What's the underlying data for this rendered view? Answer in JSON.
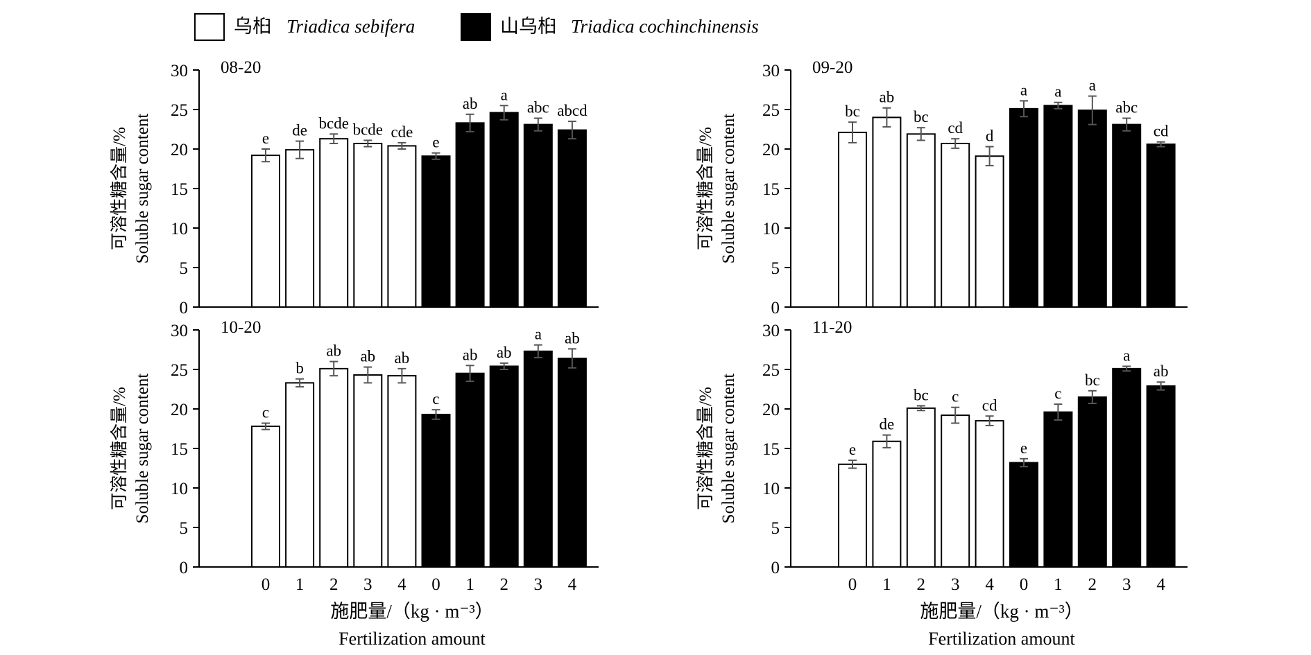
{
  "legend": [
    {
      "label_cn": "乌桕",
      "label_latin": "Triadica sebifera",
      "fill": "#ffffff"
    },
    {
      "label_cn": "山乌桕",
      "label_latin": "Triadica cochinchinensis",
      "fill": "#000000"
    }
  ],
  "y_axis_label_cn": "可溶性糖含量/%",
  "y_axis_label_en": "Soluble sugar content",
  "x_axis_label_cn": "施肥量/（kg · m⁻³）",
  "x_axis_label_en": "Fertilization amount",
  "colors": {
    "sebifera": "#ffffff",
    "cochinchinensis": "#000000",
    "error_bar": "#555555",
    "stroke": "#000000"
  },
  "chart_data": [
    {
      "type": "bar",
      "title": "08-20",
      "categories": [
        "0",
        "1",
        "2",
        "3",
        "4",
        "0",
        "1",
        "2",
        "3",
        "4"
      ],
      "values": [
        19.2,
        19.9,
        21.3,
        20.7,
        20.4,
        19.1,
        23.3,
        24.6,
        23.1,
        22.4
      ],
      "errors": [
        0.8,
        1.1,
        0.6,
        0.4,
        0.4,
        0.4,
        1.1,
        0.9,
        0.8,
        1.1
      ],
      "letters": [
        "e",
        "de",
        "bcde",
        "bcde",
        "cde",
        "e",
        "ab",
        "a",
        "abc",
        "abcd"
      ],
      "species": [
        "sebifera",
        "sebifera",
        "sebifera",
        "sebifera",
        "sebifera",
        "cochinchinensis",
        "cochinchinensis",
        "cochinchinensis",
        "cochinchinensis",
        "cochinchinensis"
      ],
      "ylim": [
        0,
        30
      ],
      "yticks": [
        0,
        5,
        10,
        15,
        20,
        25,
        30
      ]
    },
    {
      "type": "bar",
      "title": "09-20",
      "categories": [
        "0",
        "1",
        "2",
        "3",
        "4",
        "0",
        "1",
        "2",
        "3",
        "4"
      ],
      "values": [
        22.1,
        24.0,
        21.9,
        20.7,
        19.1,
        25.1,
        25.5,
        24.9,
        23.1,
        20.6
      ],
      "errors": [
        1.3,
        1.2,
        0.8,
        0.6,
        1.2,
        1.0,
        0.4,
        1.8,
        0.8,
        0.3
      ],
      "letters": [
        "bc",
        "ab",
        "bc",
        "cd",
        "d",
        "a",
        "a",
        "a",
        "abc",
        "cd"
      ],
      "species": [
        "sebifera",
        "sebifera",
        "sebifera",
        "sebifera",
        "sebifera",
        "cochinchinensis",
        "cochinchinensis",
        "cochinchinensis",
        "cochinchinensis",
        "cochinchinensis"
      ],
      "ylim": [
        0,
        30
      ],
      "yticks": [
        0,
        5,
        10,
        15,
        20,
        25,
        30
      ]
    },
    {
      "type": "bar",
      "title": "10-20",
      "categories": [
        "0",
        "1",
        "2",
        "3",
        "4",
        "0",
        "1",
        "2",
        "3",
        "4"
      ],
      "values": [
        17.8,
        23.3,
        25.1,
        24.3,
        24.2,
        19.3,
        24.5,
        25.4,
        27.3,
        26.4
      ],
      "errors": [
        0.4,
        0.5,
        0.9,
        1.0,
        0.9,
        0.6,
        1.0,
        0.4,
        0.8,
        1.2
      ],
      "letters": [
        "c",
        "b",
        "ab",
        "ab",
        "ab",
        "c",
        "ab",
        "ab",
        "a",
        "ab"
      ],
      "species": [
        "sebifera",
        "sebifera",
        "sebifera",
        "sebifera",
        "sebifera",
        "cochinchinensis",
        "cochinchinensis",
        "cochinchinensis",
        "cochinchinensis",
        "cochinchinensis"
      ],
      "ylim": [
        0,
        30
      ],
      "yticks": [
        0,
        5,
        10,
        15,
        20,
        25,
        30
      ]
    },
    {
      "type": "bar",
      "title": "11-20",
      "categories": [
        "0",
        "1",
        "2",
        "3",
        "4",
        "0",
        "1",
        "2",
        "3",
        "4"
      ],
      "values": [
        13.0,
        15.9,
        20.1,
        19.2,
        18.5,
        13.2,
        19.6,
        21.5,
        25.1,
        22.9
      ],
      "errors": [
        0.5,
        0.8,
        0.3,
        1.0,
        0.6,
        0.5,
        1.0,
        0.8,
        0.3,
        0.5
      ],
      "letters": [
        "e",
        "de",
        "bc",
        "c",
        "cd",
        "e",
        "c",
        "bc",
        "a",
        "ab"
      ],
      "species": [
        "sebifera",
        "sebifera",
        "sebifera",
        "sebifera",
        "sebifera",
        "cochinchinensis",
        "cochinchinensis",
        "cochinchinensis",
        "cochinchinensis",
        "cochinchinensis"
      ],
      "ylim": [
        0,
        30
      ],
      "yticks": [
        0,
        5,
        10,
        15,
        20,
        25,
        30
      ]
    }
  ]
}
